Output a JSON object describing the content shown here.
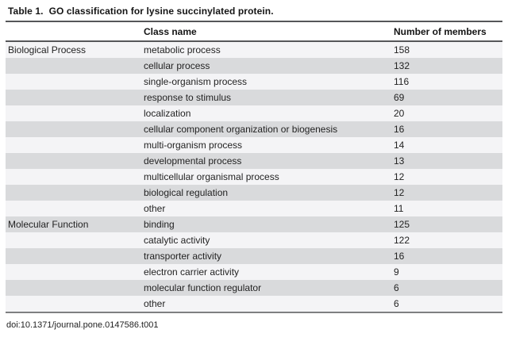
{
  "table": {
    "label": "Table 1.",
    "caption": "GO classification for lysine succinylated protein.",
    "columns": [
      "Class name",
      "Number of members"
    ],
    "rows": [
      {
        "group": "Biological Process",
        "class_name": "metabolic process",
        "members": "158"
      },
      {
        "group": "",
        "class_name": "cellular process",
        "members": "132"
      },
      {
        "group": "",
        "class_name": "single-organism process",
        "members": "116"
      },
      {
        "group": "",
        "class_name": "response to stimulus",
        "members": "69"
      },
      {
        "group": "",
        "class_name": "localization",
        "members": "20"
      },
      {
        "group": "",
        "class_name": "cellular component organization or biogenesis",
        "members": "16"
      },
      {
        "group": "",
        "class_name": "multi-organism process",
        "members": "14"
      },
      {
        "group": "",
        "class_name": "developmental process",
        "members": "13"
      },
      {
        "group": "",
        "class_name": "multicellular organismal process",
        "members": "12"
      },
      {
        "group": "",
        "class_name": "biological regulation",
        "members": "12"
      },
      {
        "group": "",
        "class_name": "other",
        "members": "11"
      },
      {
        "group": "Molecular Function",
        "class_name": "binding",
        "members": "125"
      },
      {
        "group": "",
        "class_name": "catalytic activity",
        "members": "122"
      },
      {
        "group": "",
        "class_name": "transporter activity",
        "members": "16"
      },
      {
        "group": "",
        "class_name": "electron carrier activity",
        "members": "9"
      },
      {
        "group": "",
        "class_name": "molecular function regulator",
        "members": "6"
      },
      {
        "group": "",
        "class_name": "other",
        "members": "6"
      }
    ],
    "stripe_colors": {
      "light": "#f4f4f6",
      "dark": "#d9dadc"
    },
    "rule_color": "#565759"
  },
  "footer": {
    "doi": "doi:10.1371/journal.pone.0147586.t001"
  }
}
